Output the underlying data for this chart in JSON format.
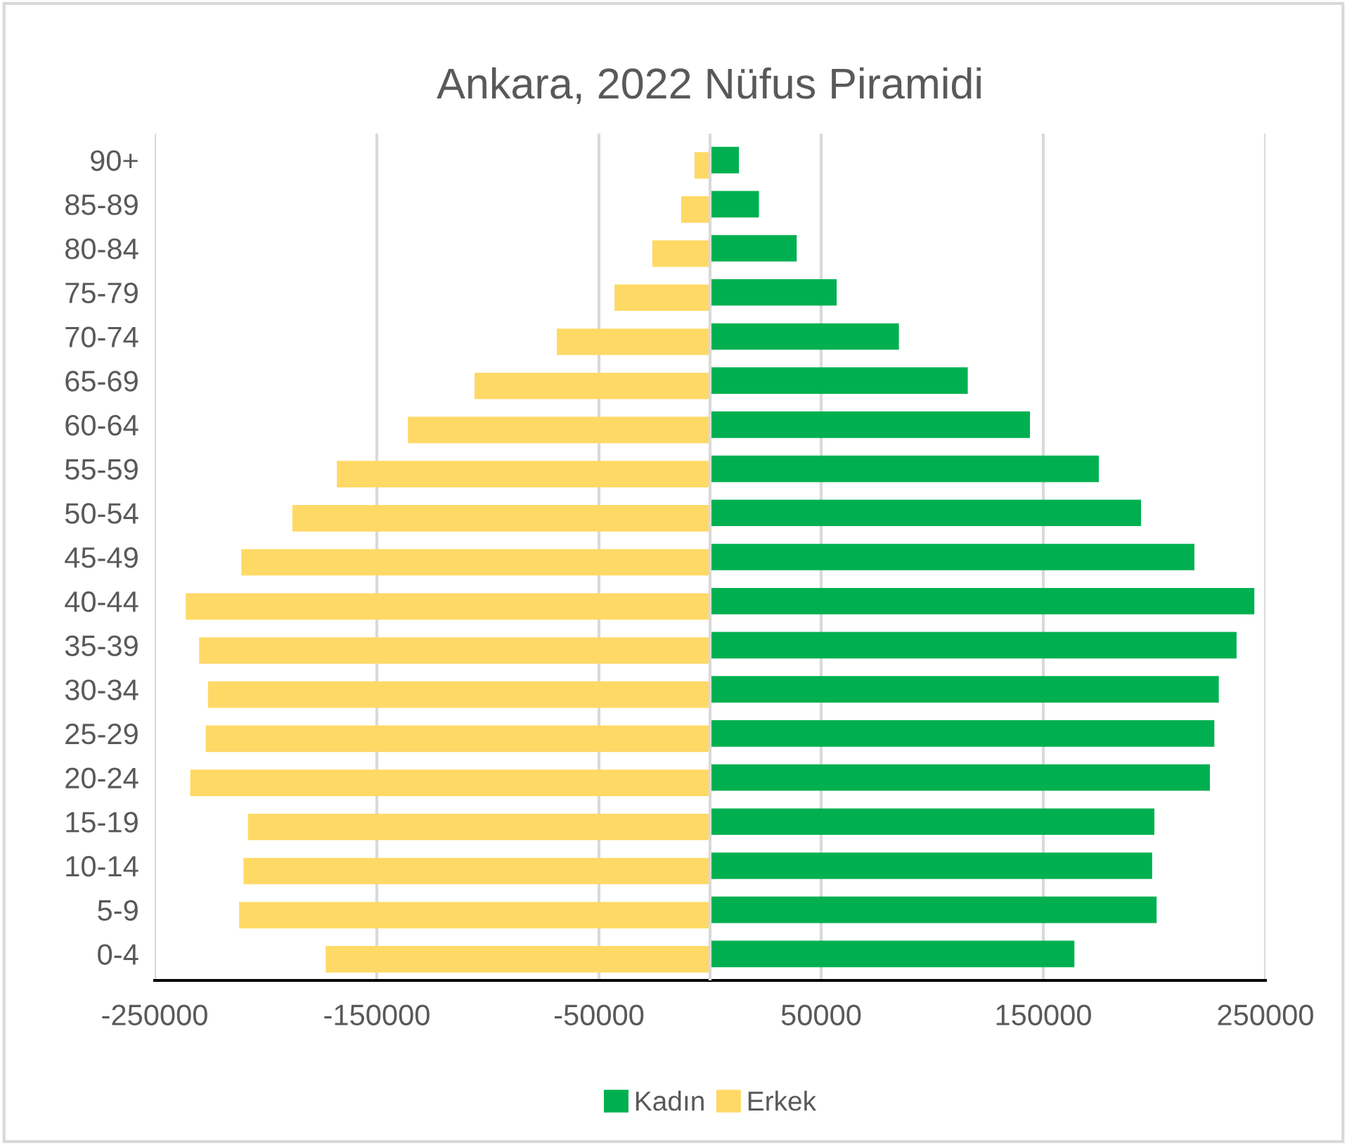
{
  "chart_data": {
    "type": "bar",
    "orientation": "horizontal",
    "title": "Ankara, 2022 Nüfus Piramidi",
    "categories": [
      "90+",
      "85-89",
      "80-84",
      "75-79",
      "70-74",
      "65-69",
      "60-64",
      "55-59",
      "50-54",
      "45-49",
      "40-44",
      "35-39",
      "30-34",
      "25-29",
      "20-24",
      "15-19",
      "10-14",
      "5-9",
      "0-4"
    ],
    "series": [
      {
        "name": "Kadın",
        "color": "#00b050",
        "values": [
          13000,
          22000,
          39000,
          57000,
          85000,
          116000,
          144000,
          175000,
          194000,
          218000,
          245000,
          237000,
          229000,
          227000,
          225000,
          200000,
          199000,
          201000,
          164000
        ]
      },
      {
        "name": "Erkek",
        "color": "#ffd966",
        "values": [
          -7000,
          -13000,
          -26000,
          -43000,
          -69000,
          -106000,
          -136000,
          -168000,
          -188000,
          -211000,
          -236000,
          -230000,
          -226000,
          -227000,
          -234000,
          -208000,
          -210000,
          -212000,
          -173000
        ]
      }
    ],
    "xlim": [
      -250000,
      250000
    ],
    "xticks": [
      -250000,
      -150000,
      -50000,
      50000,
      150000,
      250000
    ],
    "grid": "x",
    "legend": "bottom"
  }
}
